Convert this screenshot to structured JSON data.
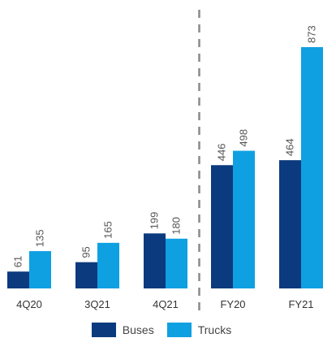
{
  "chart_data": {
    "type": "bar",
    "categories": [
      "4Q20",
      "3Q21",
      "4Q21",
      "FY20",
      "FY21"
    ],
    "series": [
      {
        "name": "Buses",
        "values": [
          61,
          95,
          199,
          446,
          464
        ],
        "color": "#0b3a7e"
      },
      {
        "name": "Trucks",
        "values": [
          135,
          165,
          180,
          498,
          873
        ],
        "color": "#0fa0e2"
      }
    ],
    "divider_after_category": "4Q21",
    "legend_position": "bottom",
    "grid": false,
    "ylim": [
      0,
      900
    ]
  }
}
